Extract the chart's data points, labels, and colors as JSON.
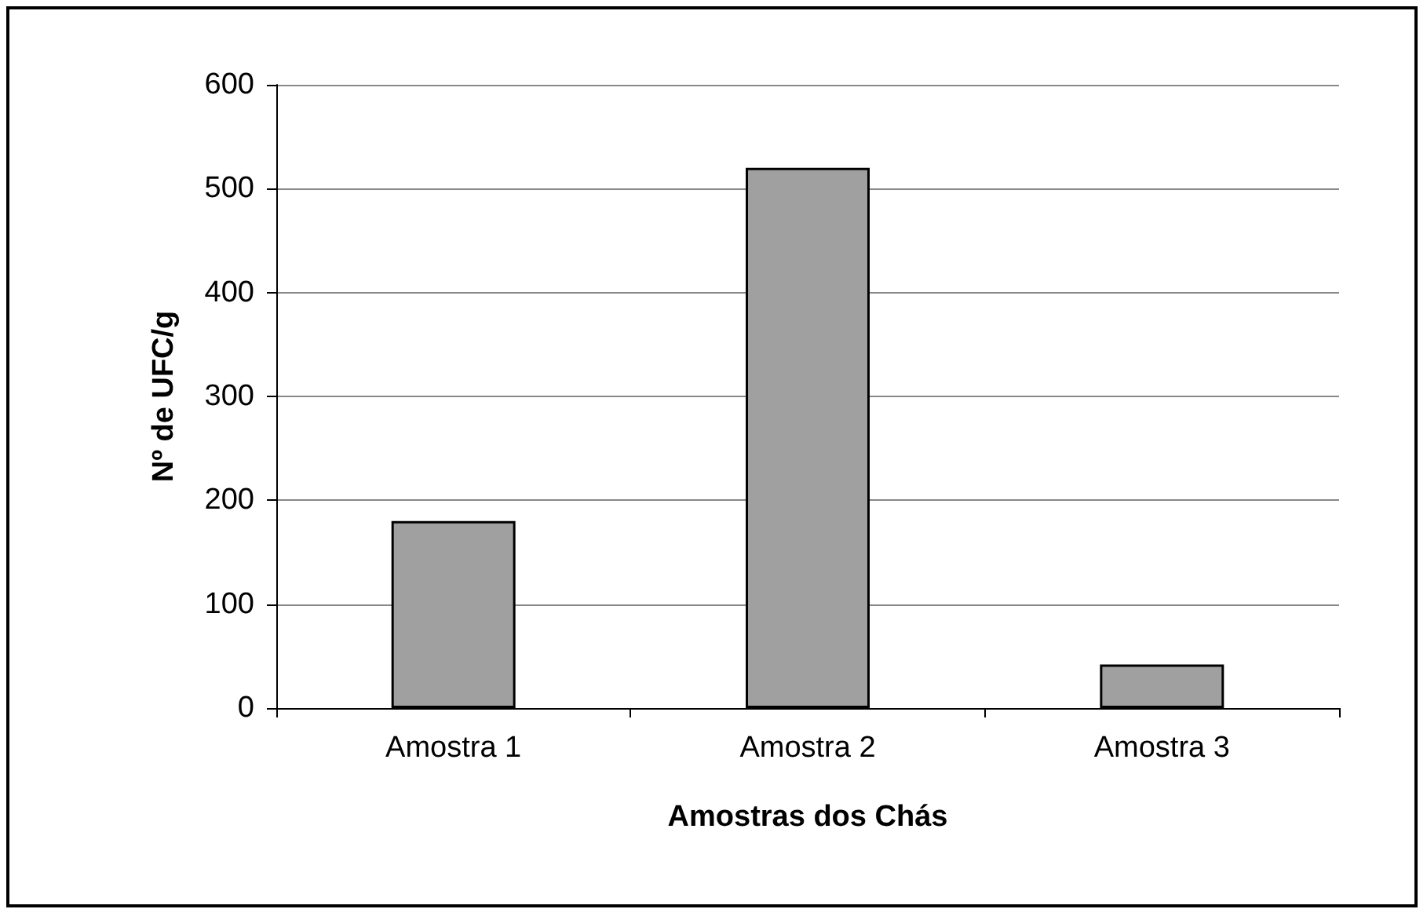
{
  "chart_data": {
    "type": "bar",
    "xlabel": "Amostras dos Chás",
    "ylabel": "Nº de UFC/g",
    "categories": [
      "Amostra 1",
      "Amostra 2",
      "Amostra 3"
    ],
    "values": [
      180,
      520,
      42
    ],
    "color": "#a0a0a0",
    "ylim": [
      0,
      600
    ],
    "yticks": [
      0,
      100,
      200,
      300,
      400,
      500,
      600
    ],
    "grid": "y"
  }
}
